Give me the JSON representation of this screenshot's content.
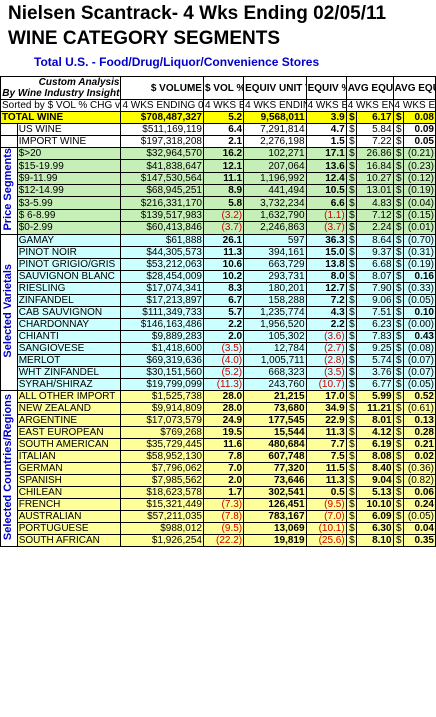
{
  "titles": {
    "line1": "Nielsen Scantrack- 4 Wks Ending 02/05/11",
    "line2": "WINE CATEGORY SEGMENTS",
    "line3": "Total U.S. - Food/Drug/Liquor/Convenience Stores"
  },
  "header": {
    "custom_analysis": "Custom Analysis",
    "by_prefix": "By",
    "company": "Wine Industry Insight",
    "volume": "$ VOLUME",
    "vol_chg": "$ VOL % CHG vs YR AGO",
    "equiv_unit_vol": "EQUIV UNIT VOL (9L case basis)",
    "equiv_chg": "EQUIV % CHG vs YR AGO",
    "avg_price": "AVG EQUIV 750ml PRICE",
    "avg_price_chg": "AVG EQUIV 750ml PRICE CHG vs YR AGO",
    "sort_note": "Sorted by $ VOL % CHG vs YR AGO",
    "period_a": "4 WKS ENDING 02/05/11",
    "period_b": "4 WKS ENDIN G 02/05/11",
    "period_c": "4 WKS ENDING 02/05/11",
    "period_d": "4 WKS ENDING 02/05/11",
    "period_e": "4 WKS ENDING 02/05/11",
    "period_f": "4 WKS ENDING 02/05/11"
  },
  "sections": {
    "price": "Price Segments",
    "varietals": "Selected Varietals",
    "regions": "Selected Countries/Regions"
  },
  "total_row": [
    "TOTAL WINE",
    "$708,487,327",
    "5.2",
    "9,568,011",
    "3.9",
    "$",
    "6.17",
    "$",
    "0.08"
  ],
  "us_import": [
    [
      "US WINE",
      "$511,169,119",
      "6.4",
      "7,291,814",
      "4.7",
      "$",
      "5.84",
      "$",
      "0.09"
    ],
    [
      "IMPORT WINE",
      "$197,318,208",
      "2.1",
      "2,276,198",
      "1.5",
      "$",
      "7.22",
      "$",
      "0.05"
    ]
  ],
  "price_rows": [
    [
      "$>20",
      "$32,964,570",
      "16.2",
      "102,271",
      "17.1",
      "$",
      "26.86",
      "$",
      "(0.21)"
    ],
    [
      "$15-19.99",
      "$41,838,647",
      "12.1",
      "207,064",
      "13.6",
      "$",
      "16.84",
      "$",
      "(0.23)"
    ],
    [
      "$9-11.99",
      "$147,530,564",
      "11.1",
      "1,196,992",
      "12.4",
      "$",
      "10.27",
      "$",
      "(0.12)"
    ],
    [
      "$12-14.99",
      "$68,945,251",
      "8.9",
      "441,494",
      "10.5",
      "$",
      "13.01",
      "$",
      "(0.19)"
    ],
    [
      "$3-5.99",
      "$216,331,170",
      "5.8",
      "3,732,234",
      "6.6",
      "$",
      "4.83",
      "$",
      "(0.04)"
    ],
    [
      "$ 6-8.99",
      "$139,517,983",
      "(3.2)",
      "1,632,790",
      "(1.1)",
      "$",
      "7.12",
      "$",
      "(0.15)"
    ],
    [
      "$0-2.99",
      "$60,413,846",
      "(3.7)",
      "2,246,863",
      "(3.7)",
      "$",
      "2.24",
      "$",
      "(0.01)"
    ]
  ],
  "varietal_rows": [
    [
      "GAMAY",
      "$61,888",
      "26.1",
      "597",
      "36.3",
      "$",
      "8.64",
      "$",
      "(0.70)"
    ],
    [
      "PINOT NOIR",
      "$44,305,573",
      "11.3",
      "394,161",
      "15.0",
      "$",
      "9.37",
      "$",
      "(0.31)"
    ],
    [
      "PINOT GRIGIO/GRIS",
      "$53,212,063",
      "10.6",
      "663,729",
      "13.8",
      "$",
      "6.68",
      "$",
      "(0.19)"
    ],
    [
      "SAUVIGNON BLANC",
      "$28,454,009",
      "10.2",
      "293,731",
      "8.0",
      "$",
      "8.07",
      "$",
      "0.16"
    ],
    [
      "RIESLING",
      "$17,074,341",
      "8.3",
      "180,201",
      "12.7",
      "$",
      "7.90",
      "$",
      "(0.33)"
    ],
    [
      "ZINFANDEL",
      "$17,213,897",
      "6.7",
      "158,288",
      "7.2",
      "$",
      "9.06",
      "$",
      "(0.05)"
    ],
    [
      "CAB SAUVIGNON",
      "$111,349,733",
      "5.7",
      "1,235,774",
      "4.3",
      "$",
      "7.51",
      "$",
      "0.10"
    ],
    [
      "CHARDONNAY",
      "$146,163,486",
      "2.2",
      "1,956,520",
      "2.2",
      "$",
      "6.23",
      "$",
      "(0.00)"
    ],
    [
      "CHIANTI",
      "$9,889,283",
      "2.0",
      "105,302",
      "(3.6)",
      "$",
      "7.83",
      "$",
      "0.43"
    ],
    [
      "SANGIOVESE",
      "$1,418,600",
      "(3.5)",
      "12,784",
      "(2.7)",
      "$",
      "9.25",
      "$",
      "(0.08)"
    ],
    [
      "MERLOT",
      "$69,319,636",
      "(4.0)",
      "1,005,711",
      "(2.8)",
      "$",
      "5.74",
      "$",
      "(0.07)"
    ],
    [
      "WHT ZINFANDEL",
      "$30,151,560",
      "(5.2)",
      "668,323",
      "(3.5)",
      "$",
      "3.76",
      "$",
      "(0.07)"
    ],
    [
      "SYRAH/SHIRAZ",
      "$19,799,099",
      "(11.3)",
      "243,760",
      "(10.7)",
      "$",
      "6.77",
      "$",
      "(0.05)"
    ]
  ],
  "region_rows": [
    [
      "ALL OTHER IMPORT",
      "$1,525,738",
      "28.0",
      "21,215",
      "17.0",
      "$",
      "5.99",
      "$",
      "0.52"
    ],
    [
      "NEW ZEALAND",
      "$9,914,809",
      "28.0",
      "73,680",
      "34.9",
      "$",
      "11.21",
      "$",
      "(0.61)"
    ],
    [
      "ARGENTINE",
      "$17,073,579",
      "24.9",
      "177,545",
      "22.9",
      "$",
      "8.01",
      "$",
      "0.13"
    ],
    [
      "EAST EUROPEAN",
      "$769,268",
      "19.5",
      "15,544",
      "11.3",
      "$",
      "4.12",
      "$",
      "0.28"
    ],
    [
      "SOUTH AMERICAN",
      "$35,729,445",
      "11.6",
      "480,684",
      "7.7",
      "$",
      "6.19",
      "$",
      "0.21"
    ],
    [
      "ITALIAN",
      "$58,952,130",
      "7.8",
      "607,748",
      "7.5",
      "$",
      "8.08",
      "$",
      "0.02"
    ],
    [
      "GERMAN",
      "$7,796,062",
      "7.0",
      "77,320",
      "11.5",
      "$",
      "8.40",
      "$",
      "(0.36)"
    ],
    [
      "SPANISH",
      "$7,985,562",
      "2.0",
      "73,646",
      "11.3",
      "$",
      "9.04",
      "$",
      "(0.82)"
    ],
    [
      "CHILEAN",
      "$18,623,578",
      "1.7",
      "302,541",
      "0.5",
      "$",
      "5.13",
      "$",
      "0.06"
    ],
    [
      "FRENCH",
      "$15,321,449",
      "(7.3)",
      "126,451",
      "(9.5)",
      "$",
      "10.10",
      "$",
      "0.24"
    ],
    [
      "AUSTRALIAN",
      "$57,211,035",
      "(7.8)",
      "783,167",
      "(7.0)",
      "$",
      "6.09",
      "$",
      "(0.05)"
    ],
    [
      "PORTUGUESE",
      "$988,012",
      "(9.5)",
      "13,069",
      "(10.1)",
      "$",
      "6.30",
      "$",
      "0.04"
    ],
    [
      "SOUTH AFRICAN",
      "$1,926,254",
      "(22.2)",
      "19,819",
      "(25.6)",
      "$",
      "8.10",
      "$",
      "0.35"
    ]
  ]
}
